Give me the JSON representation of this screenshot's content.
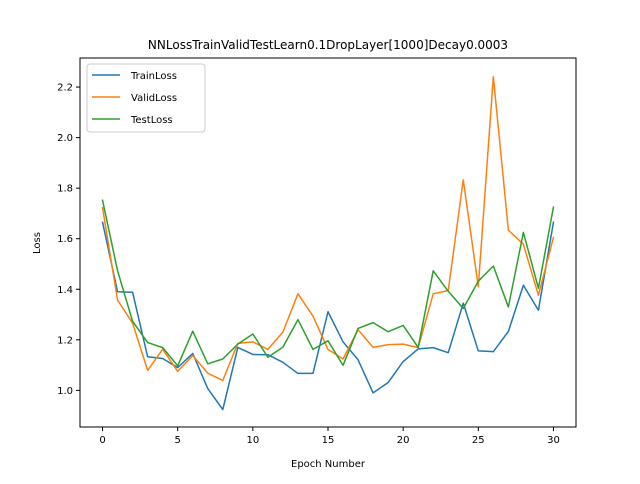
{
  "chart_data": {
    "type": "line",
    "title": "NNLossTrainValidTestLearn0.1DropLayer[1000]Decay0.0003",
    "xlabel": "Epoch Number",
    "ylabel": "Loss",
    "xlim": [
      -1.5,
      31.5
    ],
    "ylim": [
      0.855,
      2.315
    ],
    "xticks": [
      0,
      5,
      10,
      15,
      20,
      25,
      30
    ],
    "xtick_labels": [
      "0",
      "5",
      "10",
      "15",
      "20",
      "25",
      "30"
    ],
    "yticks": [
      1.0,
      1.2,
      1.4,
      1.6,
      1.8,
      2.0,
      2.2
    ],
    "ytick_labels": [
      "1.0",
      "1.2",
      "1.4",
      "1.6",
      "1.8",
      "2.0",
      "2.2"
    ],
    "grid": false,
    "legend_position": "upper-left",
    "x": [
      0,
      1,
      2,
      3,
      4,
      5,
      6,
      7,
      8,
      9,
      10,
      11,
      12,
      13,
      14,
      15,
      16,
      17,
      18,
      19,
      20,
      21,
      22,
      23,
      24,
      25,
      26,
      27,
      28,
      29,
      30
    ],
    "series": [
      {
        "name": "TrainLoss",
        "color": "#1f77b4",
        "values": [
          1.665,
          1.39,
          1.388,
          1.133,
          1.126,
          1.09,
          1.146,
          1.007,
          0.924,
          1.17,
          1.142,
          1.141,
          1.111,
          1.067,
          1.067,
          1.311,
          1.192,
          1.121,
          0.99,
          1.031,
          1.114,
          1.164,
          1.169,
          1.149,
          1.345,
          1.156,
          1.153,
          1.233,
          1.416,
          1.317,
          1.665
        ]
      },
      {
        "name": "ValidLoss",
        "color": "#ff7f0e",
        "values": [
          1.722,
          1.357,
          1.266,
          1.079,
          1.163,
          1.075,
          1.138,
          1.068,
          1.039,
          1.186,
          1.192,
          1.162,
          1.231,
          1.382,
          1.294,
          1.162,
          1.124,
          1.24,
          1.17,
          1.181,
          1.183,
          1.169,
          1.382,
          1.395,
          1.833,
          1.41,
          2.241,
          1.634,
          1.578,
          1.376,
          1.605
        ]
      },
      {
        "name": "TestLoss",
        "color": "#2ca02c",
        "values": [
          1.752,
          1.473,
          1.273,
          1.189,
          1.169,
          1.097,
          1.234,
          1.105,
          1.124,
          1.183,
          1.223,
          1.131,
          1.171,
          1.28,
          1.162,
          1.196,
          1.099,
          1.245,
          1.268,
          1.232,
          1.257,
          1.17,
          1.473,
          1.392,
          1.324,
          1.432,
          1.492,
          1.33,
          1.625,
          1.404,
          1.725
        ]
      }
    ]
  }
}
